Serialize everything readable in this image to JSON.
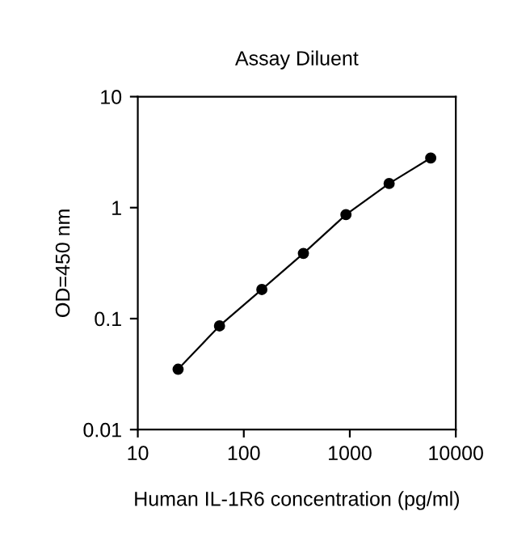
{
  "chart_data": {
    "type": "line",
    "title": "Assay Diluent",
    "xlabel": "Human IL-1R6 concentration (pg/ml)",
    "ylabel": "OD=450 nm",
    "x": [
      24,
      59,
      148,
      365,
      920,
      2350,
      5800
    ],
    "series": [
      {
        "color": "#000000",
        "values": [
          0.035,
          0.086,
          0.183,
          0.387,
          0.865,
          1.65,
          2.8
        ]
      }
    ],
    "log": "xy",
    "xlim": [
      10,
      10000
    ],
    "xticks": [
      10,
      100,
      1000,
      10000
    ],
    "ylim": [
      0.01,
      10
    ],
    "yticks": [
      0.01,
      0.1,
      1,
      10
    ],
    "marker": "circle",
    "line_style": "solid",
    "grid": false,
    "legend": false
  }
}
